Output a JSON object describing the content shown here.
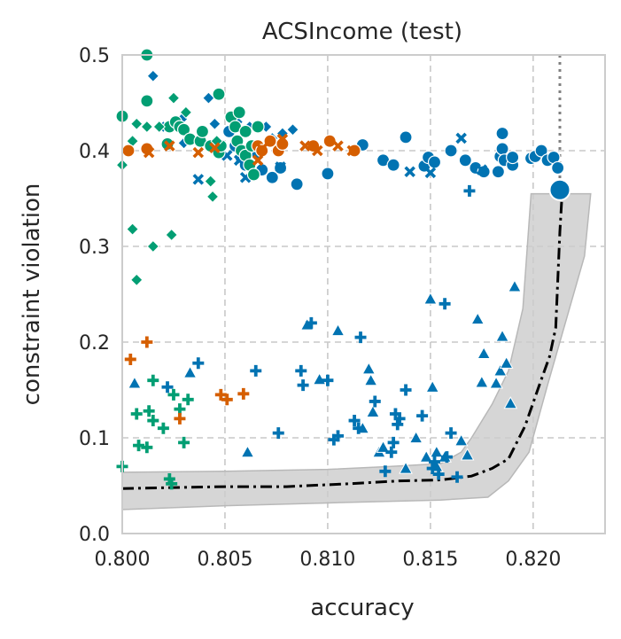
{
  "chart_data": {
    "type": "scatter",
    "title": "ACSIncome (test)",
    "xlabel": "accuracy",
    "ylabel": "constraint violation",
    "xlim": [
      0.8,
      0.8235
    ],
    "ylim": [
      0.0,
      0.5
    ],
    "xticks": [
      "0.800",
      "0.805",
      "0.810",
      "0.815",
      "0.820"
    ],
    "yticks": [
      "0.0",
      "0.1",
      "0.2",
      "0.3",
      "0.4",
      "0.5"
    ],
    "grid": true,
    "colors": {
      "blue": "#0173b2",
      "green": "#029e73",
      "orange": "#d55e00",
      "band": "#cccccc",
      "frontier": "#000000",
      "vline": "#808080"
    },
    "series": [
      {
        "color": "blue",
        "marker": "circle",
        "points": [
          [
            0.8052,
            0.42
          ],
          [
            0.8055,
            0.405
          ],
          [
            0.8058,
            0.392
          ],
          [
            0.806,
            0.385
          ],
          [
            0.8063,
            0.402
          ],
          [
            0.8066,
            0.396
          ],
          [
            0.8068,
            0.38
          ],
          [
            0.8073,
            0.372
          ],
          [
            0.8077,
            0.382
          ],
          [
            0.8085,
            0.365
          ],
          [
            0.81,
            0.376
          ],
          [
            0.8117,
            0.406
          ],
          [
            0.8127,
            0.39
          ],
          [
            0.8132,
            0.385
          ],
          [
            0.8138,
            0.414
          ],
          [
            0.8147,
            0.384
          ],
          [
            0.8149,
            0.393
          ],
          [
            0.8152,
            0.388
          ],
          [
            0.816,
            0.4
          ],
          [
            0.8167,
            0.39
          ],
          [
            0.8172,
            0.382
          ],
          [
            0.8176,
            0.378
          ],
          [
            0.8183,
            0.378
          ],
          [
            0.8184,
            0.394
          ],
          [
            0.8185,
            0.402
          ],
          [
            0.8185,
            0.418
          ],
          [
            0.8186,
            0.39
          ],
          [
            0.819,
            0.385
          ],
          [
            0.819,
            0.393
          ],
          [
            0.8199,
            0.392
          ],
          [
            0.8201,
            0.394
          ],
          [
            0.8204,
            0.4
          ],
          [
            0.8207,
            0.39
          ],
          [
            0.821,
            0.393
          ],
          [
            0.8212,
            0.382
          ]
        ]
      },
      {
        "color": "blue",
        "marker": "diamond",
        "points": [
          [
            0.8015,
            0.478
          ],
          [
            0.802,
            0.425
          ],
          [
            0.8029,
            0.433
          ],
          [
            0.803,
            0.408
          ],
          [
            0.8042,
            0.455
          ],
          [
            0.8045,
            0.428
          ],
          [
            0.8056,
            0.43
          ],
          [
            0.8062,
            0.425
          ],
          [
            0.807,
            0.425
          ],
          [
            0.8073,
            0.413
          ],
          [
            0.8078,
            0.418
          ],
          [
            0.8083,
            0.422
          ]
        ]
      },
      {
        "color": "blue",
        "marker": "x",
        "points": [
          [
            0.8037,
            0.37
          ],
          [
            0.8051,
            0.395
          ],
          [
            0.8057,
            0.39
          ],
          [
            0.806,
            0.372
          ],
          [
            0.8077,
            0.383
          ],
          [
            0.814,
            0.378
          ],
          [
            0.815,
            0.377
          ],
          [
            0.8165,
            0.413
          ],
          [
            0.8175,
            0.38
          ]
        ]
      },
      {
        "color": "blue",
        "marker": "triangle",
        "points": [
          [
            0.8006,
            0.157
          ],
          [
            0.8033,
            0.168
          ],
          [
            0.8061,
            0.085
          ],
          [
            0.809,
            0.218
          ],
          [
            0.8096,
            0.161
          ],
          [
            0.8105,
            0.212
          ],
          [
            0.8117,
            0.11
          ],
          [
            0.812,
            0.172
          ],
          [
            0.8121,
            0.16
          ],
          [
            0.8122,
            0.127
          ],
          [
            0.8125,
            0.085
          ],
          [
            0.8127,
            0.09
          ],
          [
            0.8138,
            0.068
          ],
          [
            0.8143,
            0.1
          ],
          [
            0.8148,
            0.08
          ],
          [
            0.815,
            0.245
          ],
          [
            0.8151,
            0.153
          ],
          [
            0.8153,
            0.085
          ],
          [
            0.8153,
            0.07
          ],
          [
            0.8157,
            0.08
          ],
          [
            0.8165,
            0.097
          ],
          [
            0.8168,
            0.082
          ],
          [
            0.8173,
            0.224
          ],
          [
            0.8175,
            0.158
          ],
          [
            0.8176,
            0.188
          ],
          [
            0.8182,
            0.157
          ],
          [
            0.8184,
            0.17
          ],
          [
            0.8185,
            0.206
          ],
          [
            0.8187,
            0.178
          ],
          [
            0.8189,
            0.136
          ],
          [
            0.8191,
            0.258
          ]
        ]
      },
      {
        "color": "blue",
        "marker": "plus",
        "points": [
          [
            0.8022,
            0.153
          ],
          [
            0.8037,
            0.178
          ],
          [
            0.8065,
            0.17
          ],
          [
            0.8076,
            0.105
          ],
          [
            0.8087,
            0.17
          ],
          [
            0.8088,
            0.155
          ],
          [
            0.8092,
            0.22
          ],
          [
            0.81,
            0.16
          ],
          [
            0.8103,
            0.098
          ],
          [
            0.8105,
            0.102
          ],
          [
            0.8113,
            0.118
          ],
          [
            0.8115,
            0.11
          ],
          [
            0.8116,
            0.205
          ],
          [
            0.8123,
            0.138
          ],
          [
            0.8128,
            0.065
          ],
          [
            0.8131,
            0.085
          ],
          [
            0.8132,
            0.095
          ],
          [
            0.8133,
            0.125
          ],
          [
            0.8134,
            0.114
          ],
          [
            0.8135,
            0.12
          ],
          [
            0.8138,
            0.15
          ],
          [
            0.8146,
            0.123
          ],
          [
            0.8151,
            0.068
          ],
          [
            0.8152,
            0.075
          ],
          [
            0.8154,
            0.062
          ],
          [
            0.8157,
            0.24
          ],
          [
            0.8158,
            0.08
          ],
          [
            0.816,
            0.105
          ],
          [
            0.8163,
            0.059
          ],
          [
            0.8169,
            0.358
          ]
        ]
      },
      {
        "color": "green",
        "marker": "circle",
        "points": [
          [
            0.8,
            0.436
          ],
          [
            0.8012,
            0.5
          ],
          [
            0.8012,
            0.452
          ],
          [
            0.8022,
            0.407
          ],
          [
            0.8023,
            0.425
          ],
          [
            0.8026,
            0.43
          ],
          [
            0.8028,
            0.425
          ],
          [
            0.803,
            0.422
          ],
          [
            0.8033,
            0.412
          ],
          [
            0.8038,
            0.41
          ],
          [
            0.8039,
            0.42
          ],
          [
            0.8043,
            0.405
          ],
          [
            0.8047,
            0.398
          ],
          [
            0.8047,
            0.459
          ],
          [
            0.8048,
            0.405
          ],
          [
            0.8053,
            0.435
          ],
          [
            0.8055,
            0.425
          ],
          [
            0.8056,
            0.41
          ],
          [
            0.8057,
            0.44
          ],
          [
            0.8058,
            0.4
          ],
          [
            0.806,
            0.395
          ],
          [
            0.806,
            0.42
          ],
          [
            0.8062,
            0.385
          ],
          [
            0.8063,
            0.405
          ],
          [
            0.8064,
            0.375
          ],
          [
            0.8066,
            0.425
          ]
        ]
      },
      {
        "color": "green",
        "marker": "diamond",
        "points": [
          [
            0.8,
            0.385
          ],
          [
            0.8005,
            0.41
          ],
          [
            0.8007,
            0.428
          ],
          [
            0.8005,
            0.318
          ],
          [
            0.8007,
            0.265
          ],
          [
            0.8012,
            0.425
          ],
          [
            0.8015,
            0.3
          ],
          [
            0.8018,
            0.425
          ],
          [
            0.8024,
            0.312
          ],
          [
            0.8025,
            0.455
          ],
          [
            0.8031,
            0.44
          ],
          [
            0.8043,
            0.368
          ],
          [
            0.8044,
            0.352
          ],
          [
            0.8046,
            0.41
          ]
        ]
      },
      {
        "color": "green",
        "marker": "plus",
        "points": [
          [
            0.8,
            0.07
          ],
          [
            0.8007,
            0.125
          ],
          [
            0.8008,
            0.092
          ],
          [
            0.8012,
            0.09
          ],
          [
            0.8013,
            0.128
          ],
          [
            0.8015,
            0.118
          ],
          [
            0.8015,
            0.16
          ],
          [
            0.802,
            0.11
          ],
          [
            0.8023,
            0.057
          ],
          [
            0.8024,
            0.052
          ],
          [
            0.8025,
            0.145
          ],
          [
            0.8028,
            0.13
          ],
          [
            0.803,
            0.095
          ],
          [
            0.8032,
            0.14
          ]
        ]
      },
      {
        "color": "orange",
        "marker": "circle",
        "points": [
          [
            0.8003,
            0.4
          ],
          [
            0.8012,
            0.402
          ],
          [
            0.8066,
            0.405
          ],
          [
            0.8068,
            0.4
          ],
          [
            0.8072,
            0.41
          ],
          [
            0.8076,
            0.4
          ],
          [
            0.8078,
            0.407
          ],
          [
            0.8093,
            0.405
          ],
          [
            0.8101,
            0.41
          ],
          [
            0.8113,
            0.4
          ]
        ]
      },
      {
        "color": "orange",
        "marker": "x",
        "points": [
          [
            0.8013,
            0.398
          ],
          [
            0.8023,
            0.405
          ],
          [
            0.8037,
            0.398
          ],
          [
            0.8045,
            0.403
          ],
          [
            0.8066,
            0.39
          ],
          [
            0.8068,
            0.402
          ],
          [
            0.8078,
            0.412
          ],
          [
            0.8089,
            0.405
          ],
          [
            0.8095,
            0.4
          ],
          [
            0.8105,
            0.405
          ],
          [
            0.8112,
            0.4
          ]
        ]
      },
      {
        "color": "orange",
        "marker": "plus",
        "points": [
          [
            0.8004,
            0.182
          ],
          [
            0.8012,
            0.2
          ],
          [
            0.8028,
            0.12
          ],
          [
            0.8048,
            0.145
          ],
          [
            0.8051,
            0.14
          ],
          [
            0.8059,
            0.146
          ]
        ]
      },
      {
        "color": "blue",
        "marker": "big-circle",
        "points": [
          [
            0.8213,
            0.359
          ]
        ]
      }
    ],
    "frontier": [
      [
        0.8,
        0.047
      ],
      [
        0.805,
        0.049
      ],
      [
        0.808,
        0.049
      ],
      [
        0.811,
        0.052
      ],
      [
        0.8135,
        0.055
      ],
      [
        0.8155,
        0.056
      ],
      [
        0.817,
        0.06
      ],
      [
        0.818,
        0.068
      ],
      [
        0.8188,
        0.078
      ],
      [
        0.8196,
        0.112
      ],
      [
        0.8203,
        0.155
      ],
      [
        0.8208,
        0.185
      ],
      [
        0.8211,
        0.215
      ],
      [
        0.8213,
        0.315
      ],
      [
        0.8214,
        0.352
      ]
    ],
    "band_upper": [
      [
        0.8,
        0.064
      ],
      [
        0.805,
        0.065
      ],
      [
        0.81,
        0.067
      ],
      [
        0.813,
        0.07
      ],
      [
        0.8155,
        0.073
      ],
      [
        0.8165,
        0.085
      ],
      [
        0.817,
        0.1
      ],
      [
        0.818,
        0.135
      ],
      [
        0.8188,
        0.17
      ],
      [
        0.8195,
        0.235
      ],
      [
        0.8199,
        0.355
      ],
      [
        0.8228,
        0.355
      ]
    ],
    "band_lower": [
      [
        0.8228,
        0.355
      ],
      [
        0.8225,
        0.29
      ],
      [
        0.8215,
        0.215
      ],
      [
        0.8207,
        0.155
      ],
      [
        0.8198,
        0.085
      ],
      [
        0.8188,
        0.055
      ],
      [
        0.8178,
        0.038
      ],
      [
        0.8155,
        0.035
      ],
      [
        0.81,
        0.032
      ],
      [
        0.805,
        0.029
      ],
      [
        0.8,
        0.025
      ]
    ],
    "vline_x": 0.8213
  }
}
